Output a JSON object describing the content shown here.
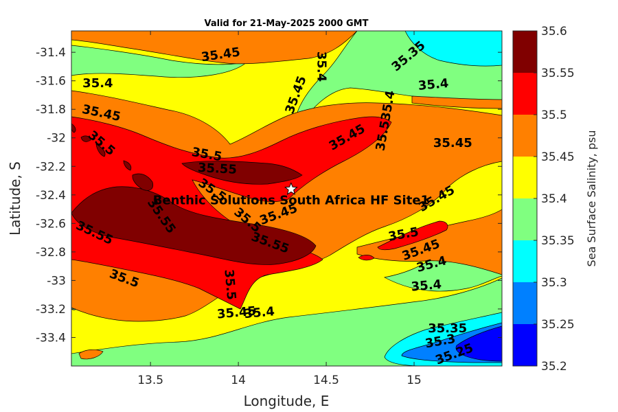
{
  "chart_data": {
    "type": "heatmap",
    "title": "Valid for 21-May-2025 2000 GMT",
    "xlabel": "Longitude, E",
    "ylabel": "Latitude, S",
    "xlim": [
      13.05,
      15.5
    ],
    "ylim": [
      -33.6,
      -31.25
    ],
    "x_ticks": [
      13.5,
      14,
      14.5,
      15
    ],
    "x_tick_labels": [
      "13.5",
      "14",
      "14.5",
      "15"
    ],
    "y_ticks": [
      -31.4,
      -31.6,
      -31.8,
      -32,
      -32.2,
      -32.4,
      -32.6,
      -32.8,
      -33,
      -33.2,
      -33.4
    ],
    "y_tick_labels": [
      "-31.4",
      "-31.6",
      "-31.8",
      "-32",
      "-32.2",
      "-32.4",
      "-32.6",
      "-32.8",
      "-33",
      "-33.2",
      "-33.4"
    ],
    "colorbar": {
      "label": "Sea Surface Salinity, psu",
      "levels": [
        35.2,
        35.25,
        35.3,
        35.35,
        35.4,
        35.45,
        35.5,
        35.55,
        35.6
      ],
      "level_labels": [
        "35.2",
        "35.25",
        "35.3",
        "35.35",
        "35.4",
        "35.45",
        "35.5",
        "35.55",
        "35.6"
      ],
      "colors": [
        "#0000ff",
        "#0080ff",
        "#00ffff",
        "#80ff80",
        "#ffff00",
        "#ff8000",
        "#ff0000",
        "#800000"
      ]
    },
    "site": {
      "name": "Benthic Solutions South Africa HF Site1",
      "lon": 14.3,
      "lat": -32.36
    },
    "contour_labels": [
      {
        "text": "35.45",
        "lon": 13.9,
        "lat": -31.42,
        "angle": -8
      },
      {
        "text": "35.4",
        "lon": 13.2,
        "lat": -31.62,
        "angle": 0
      },
      {
        "text": "35.45",
        "lon": 13.22,
        "lat": -31.83,
        "angle": 12
      },
      {
        "text": "35.45",
        "lon": 14.33,
        "lat": -31.7,
        "angle": -70
      },
      {
        "text": "35.4",
        "lon": 14.47,
        "lat": -31.5,
        "angle": 90
      },
      {
        "text": "35.35",
        "lon": 14.97,
        "lat": -31.43,
        "angle": -40
      },
      {
        "text": "35.4",
        "lon": 15.11,
        "lat": -31.63,
        "angle": -5
      },
      {
        "text": "35.45",
        "lon": 14.62,
        "lat": -32.0,
        "angle": -30
      },
      {
        "text": "35.535.4",
        "lon": 14.84,
        "lat": -31.88,
        "angle": -80
      },
      {
        "text": "35.45",
        "lon": 15.22,
        "lat": -32.04,
        "angle": 0
      },
      {
        "text": "35.5",
        "lon": 13.22,
        "lat": -32.04,
        "angle": 40
      },
      {
        "text": "35.5",
        "lon": 13.82,
        "lat": -32.12,
        "angle": 10
      },
      {
        "text": "35.55",
        "lon": 13.88,
        "lat": -32.22,
        "angle": 3
      },
      {
        "text": "35.5",
        "lon": 13.85,
        "lat": -32.37,
        "angle": 35
      },
      {
        "text": "35.55",
        "lon": 13.56,
        "lat": -32.55,
        "angle": 55
      },
      {
        "text": "35.5",
        "lon": 14.05,
        "lat": -32.58,
        "angle": 40
      },
      {
        "text": "35.45",
        "lon": 14.23,
        "lat": -32.54,
        "angle": -20
      },
      {
        "text": "35.45",
        "lon": 15.13,
        "lat": -32.43,
        "angle": -30
      },
      {
        "text": "35.55",
        "lon": 13.18,
        "lat": -32.67,
        "angle": 25
      },
      {
        "text": "35.55",
        "lon": 14.18,
        "lat": -32.74,
        "angle": 20
      },
      {
        "text": "35.5",
        "lon": 14.94,
        "lat": -32.68,
        "angle": -10
      },
      {
        "text": "35.45",
        "lon": 15.04,
        "lat": -32.79,
        "angle": -20
      },
      {
        "text": "35.4",
        "lon": 15.1,
        "lat": -32.89,
        "angle": -15
      },
      {
        "text": "35.5",
        "lon": 13.35,
        "lat": -32.99,
        "angle": 20
      },
      {
        "text": "35.5",
        "lon": 13.95,
        "lat": -33.03,
        "angle": 85
      },
      {
        "text": "35.4",
        "lon": 15.07,
        "lat": -33.04,
        "angle": -5
      },
      {
        "text": "35.45",
        "lon": 13.99,
        "lat": -33.23,
        "angle": -5
      },
      {
        "text": "35.4",
        "lon": 14.12,
        "lat": -33.23,
        "angle": -5
      },
      {
        "text": "35.35",
        "lon": 15.19,
        "lat": -33.34,
        "angle": 0
      },
      {
        "text": "35.3",
        "lon": 15.15,
        "lat": -33.43,
        "angle": -10
      },
      {
        "text": "35.25",
        "lon": 15.23,
        "lat": -33.52,
        "angle": -20
      }
    ]
  }
}
